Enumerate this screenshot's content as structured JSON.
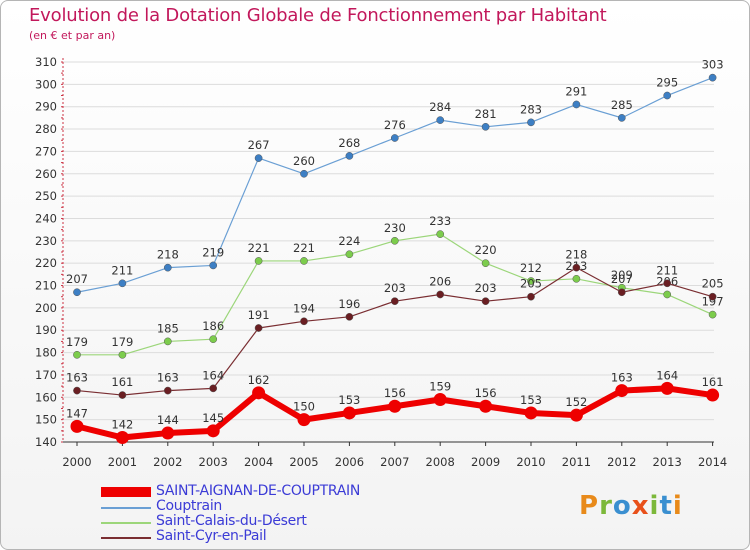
{
  "header": {
    "title": "Evolution de la Dotation Globale de Fonctionnement par Habitant",
    "subtitle": "(en € et par an)"
  },
  "logo": {
    "text": "Proxiti"
  },
  "colors": {
    "title": "#c2185b",
    "axis_text": "#333333",
    "grid": "#dddddd",
    "legend_text": "#3b3bd6"
  },
  "chart_data": {
    "type": "line",
    "title": "Evolution de la Dotation Globale de Fonctionnement par Habitant",
    "subtitle": "(en € et par an)",
    "xlabel": "",
    "ylabel": "",
    "ylim": [
      140,
      310
    ],
    "yticks": [
      140,
      150,
      160,
      170,
      180,
      190,
      200,
      210,
      220,
      230,
      240,
      250,
      260,
      270,
      280,
      290,
      300,
      310
    ],
    "grid": "horizontal",
    "legend_position": "bottom-left",
    "categories": [
      "2000",
      "2001",
      "2002",
      "2003",
      "2004",
      "2005",
      "2006",
      "2007",
      "2008",
      "2009",
      "2010",
      "2011",
      "2012",
      "2013",
      "2014"
    ],
    "series": [
      {
        "name": "SAINT-AIGNAN-DE-COUPTRAIN",
        "color": "#ee0000",
        "emphasis": true,
        "values": [
          147,
          142,
          144,
          145,
          162,
          150,
          153,
          156,
          159,
          156,
          153,
          152,
          163,
          164,
          161
        ]
      },
      {
        "name": "Couptrain",
        "color": "#6a9fd4",
        "marker_color": "#3d7fc4",
        "values": [
          207,
          211,
          218,
          219,
          267,
          260,
          268,
          276,
          284,
          281,
          283,
          291,
          285,
          295,
          303
        ]
      },
      {
        "name": "Saint-Calais-du-Désert",
        "color": "#9cd67a",
        "marker_color": "#7ccc4c",
        "values": [
          179,
          179,
          185,
          186,
          221,
          221,
          224,
          230,
          233,
          220,
          212,
          213,
          209,
          206,
          197
        ]
      },
      {
        "name": "Saint-Cyr-en-Pail",
        "color": "#7a2e32",
        "marker_color": "#6a1e22",
        "values": [
          163,
          161,
          163,
          164,
          191,
          194,
          196,
          203,
          206,
          203,
          205,
          218,
          207,
          211,
          205
        ]
      }
    ]
  }
}
